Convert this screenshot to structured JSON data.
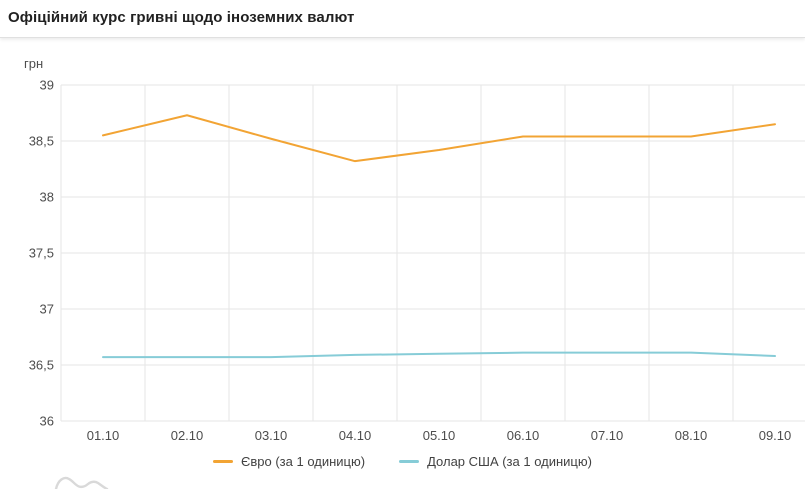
{
  "header": {
    "title": "Офіційний курс гривні щодо іноземних валют"
  },
  "chart_data": {
    "type": "line",
    "title": "Офіційний курс гривні щодо іноземних валют",
    "unit_label": "грн",
    "categories": [
      "01.10",
      "02.10",
      "03.10",
      "04.10",
      "05.10",
      "06.10",
      "07.10",
      "08.10",
      "09.10"
    ],
    "series": [
      {
        "name": "Євро (за 1 одиницю)",
        "color": "#f2a434",
        "values": [
          38.55,
          38.73,
          38.52,
          38.32,
          38.42,
          38.54,
          38.54,
          38.54,
          38.65
        ]
      },
      {
        "name": "Долар США (за 1 одиницю)",
        "color": "#86ccd7",
        "values": [
          36.57,
          36.57,
          36.57,
          36.59,
          36.6,
          36.61,
          36.61,
          36.61,
          36.58
        ]
      }
    ],
    "ylim": [
      36,
      39
    ],
    "y_tick_step": 0.5,
    "y_tick_labels": [
      "39",
      "38,5",
      "38",
      "37,5",
      "37",
      "36,5",
      "36"
    ],
    "xlabel": "",
    "ylabel": "грн",
    "grid": true,
    "legend_position": "bottom",
    "gridline_color": "#e6e6e6"
  }
}
